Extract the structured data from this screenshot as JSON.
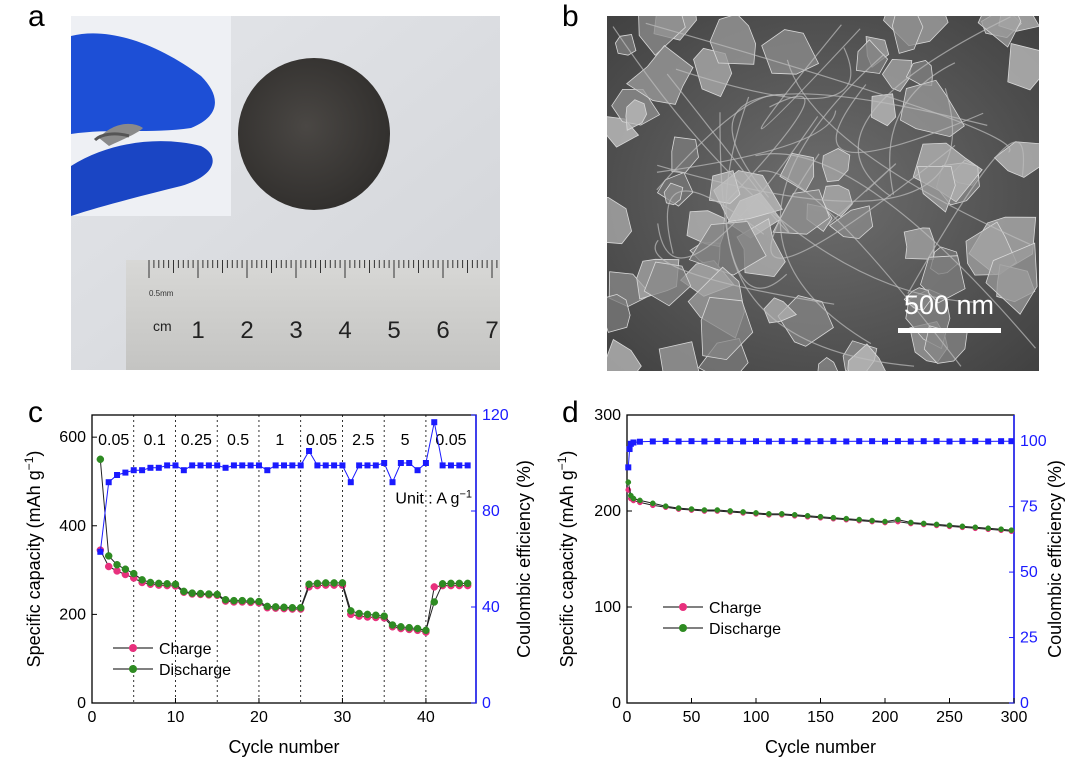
{
  "panels": {
    "a": {
      "letter": "a",
      "ruler": {
        "unit_label": "cm",
        "scale_label": "0.5mm",
        "numbers": [
          "1",
          "2",
          "3",
          "4",
          "5",
          "6",
          "7"
        ]
      }
    },
    "b": {
      "letter": "b",
      "scale_bar": "500 nm"
    },
    "c": {
      "letter": "c"
    },
    "d": {
      "letter": "d"
    }
  },
  "colors": {
    "charge": "#e8307d",
    "discharge": "#2e8b22",
    "ce": "#1a1aff",
    "axis_right": "#1a1aff"
  },
  "chart_data": [
    {
      "type": "scatter",
      "panel": "c",
      "xlabel": "Cycle number",
      "ylabel": "Specific capacity (mAh g",
      "ylabel_sup": "−1",
      "ylabel_close": ")",
      "y2label": "Coulombic efficiency (%)",
      "xlim": [
        0,
        46
      ],
      "ylim": [
        0,
        650
      ],
      "y2lim": [
        0,
        120
      ],
      "xticks": [
        0,
        10,
        20,
        30,
        40
      ],
      "yticks": [
        0,
        200,
        400,
        600
      ],
      "y2ticks": [
        0,
        40,
        80,
        120
      ],
      "rate_dividers": [
        5,
        10,
        15,
        20,
        25,
        30,
        35,
        40
      ],
      "rate_labels": [
        "0.05",
        "0.1",
        "0.25",
        "0.5",
        "1",
        "0.05",
        "2.5",
        "5",
        "0.05"
      ],
      "unit_text": "Unit : A g",
      "unit_sup": "−1",
      "legend": {
        "placement": "bottom-left",
        "entries": [
          "Charge",
          "Discharge"
        ]
      },
      "series": [
        {
          "name": "Charge",
          "axis": "left",
          "x": [
            1,
            2,
            3,
            4,
            5,
            6,
            7,
            8,
            9,
            10,
            11,
            12,
            13,
            14,
            15,
            16,
            17,
            18,
            19,
            20,
            21,
            22,
            23,
            24,
            25,
            26,
            27,
            28,
            29,
            30,
            31,
            32,
            33,
            34,
            35,
            36,
            37,
            38,
            39,
            40,
            41,
            42,
            43,
            44,
            45
          ],
          "values": [
            345,
            308,
            298,
            290,
            282,
            272,
            268,
            266,
            265,
            264,
            250,
            246,
            245,
            244,
            243,
            230,
            228,
            228,
            227,
            226,
            215,
            214,
            213,
            212,
            212,
            262,
            265,
            266,
            266,
            266,
            200,
            196,
            194,
            193,
            192,
            172,
            168,
            166,
            164,
            160,
            262,
            265,
            265,
            265,
            265
          ]
        },
        {
          "name": "Discharge",
          "axis": "left",
          "x": [
            1,
            2,
            3,
            4,
            5,
            6,
            7,
            8,
            9,
            10,
            11,
            12,
            13,
            14,
            15,
            16,
            17,
            18,
            19,
            20,
            21,
            22,
            23,
            24,
            25,
            26,
            27,
            28,
            29,
            30,
            31,
            32,
            33,
            34,
            35,
            36,
            37,
            38,
            39,
            40,
            41,
            42,
            43,
            44,
            45
          ],
          "values": [
            550,
            332,
            312,
            302,
            292,
            278,
            272,
            270,
            269,
            268,
            252,
            248,
            247,
            246,
            245,
            233,
            231,
            231,
            230,
            229,
            218,
            217,
            216,
            215,
            215,
            268,
            270,
            271,
            271,
            271,
            208,
            202,
            200,
            198,
            196,
            176,
            172,
            170,
            168,
            164,
            228,
            269,
            270,
            270,
            270
          ]
        },
        {
          "name": "",
          "axis": "right",
          "x": [
            1,
            2,
            3,
            4,
            5,
            6,
            7,
            8,
            9,
            10,
            11,
            12,
            13,
            14,
            15,
            16,
            17,
            18,
            19,
            20,
            21,
            22,
            23,
            24,
            25,
            26,
            27,
            28,
            29,
            30,
            31,
            32,
            33,
            34,
            35,
            36,
            37,
            38,
            39,
            40,
            41,
            42,
            43,
            44,
            45
          ],
          "values": [
            63,
            92,
            95,
            96,
            97,
            97,
            98,
            98,
            99,
            99,
            97,
            99,
            99,
            99,
            99,
            98,
            99,
            99,
            99,
            99,
            97,
            99,
            99,
            99,
            99,
            105,
            99,
            99,
            99,
            99,
            92,
            99,
            99,
            99,
            100,
            92,
            100,
            100,
            97,
            100,
            117,
            99,
            99,
            99,
            99
          ]
        }
      ]
    },
    {
      "type": "scatter",
      "panel": "d",
      "xlabel": "Cycle number",
      "ylabel": "Specific capacity (mAh g",
      "ylabel_sup": "−1",
      "ylabel_close": ")",
      "y2label": "Coulombic efficiency (%)",
      "xlim": [
        0,
        300
      ],
      "ylim": [
        0,
        300
      ],
      "y2lim": [
        0,
        110
      ],
      "xticks": [
        0,
        50,
        100,
        150,
        200,
        250,
        300
      ],
      "yticks": [
        0,
        100,
        200,
        300
      ],
      "y2ticks": [
        0,
        25,
        50,
        75,
        100
      ],
      "legend": {
        "placement": "center-left",
        "entries": [
          "Charge",
          "Discharge"
        ]
      },
      "series": [
        {
          "name": "Charge",
          "axis": "left",
          "x": [
            1,
            3,
            5,
            10,
            20,
            30,
            40,
            50,
            60,
            70,
            80,
            90,
            100,
            110,
            120,
            130,
            140,
            150,
            160,
            170,
            180,
            190,
            200,
            210,
            220,
            230,
            240,
            250,
            260,
            270,
            280,
            290,
            298
          ],
          "values": [
            222,
            213,
            211,
            209,
            206,
            204,
            202,
            201,
            200,
            200,
            199,
            198,
            197,
            196,
            196,
            195,
            194,
            193,
            192,
            191,
            190,
            189,
            188,
            189,
            187,
            186,
            185,
            184,
            183,
            182,
            181,
            180,
            179
          ]
        },
        {
          "name": "Discharge",
          "axis": "left",
          "x": [
            1,
            3,
            5,
            10,
            20,
            30,
            40,
            50,
            60,
            70,
            80,
            90,
            100,
            110,
            120,
            130,
            140,
            150,
            160,
            170,
            180,
            190,
            200,
            210,
            220,
            230,
            240,
            250,
            260,
            270,
            280,
            290,
            298
          ],
          "values": [
            230,
            216,
            213,
            211,
            208,
            205,
            203,
            202,
            201,
            201,
            200,
            199,
            198,
            197,
            197,
            196,
            195,
            194,
            193,
            192,
            191,
            190,
            189,
            191,
            188,
            187,
            186,
            185,
            184,
            183,
            182,
            181,
            180
          ]
        },
        {
          "name": "",
          "axis": "right",
          "x": [
            1,
            2,
            3,
            5,
            10,
            20,
            30,
            40,
            50,
            60,
            70,
            80,
            90,
            100,
            110,
            120,
            130,
            140,
            150,
            160,
            170,
            180,
            190,
            200,
            210,
            220,
            230,
            240,
            250,
            260,
            270,
            280,
            290,
            298
          ],
          "values": [
            90,
            97,
            99,
            99.5,
            99.8,
            99.9,
            100,
            99.9,
            100,
            99.9,
            100,
            100,
            99.9,
            100,
            99.9,
            100,
            100,
            99.9,
            100,
            100,
            99.9,
            100,
            100,
            99.9,
            100,
            99.9,
            100,
            100,
            99.9,
            100,
            100,
            99.9,
            100,
            100
          ]
        }
      ]
    }
  ]
}
